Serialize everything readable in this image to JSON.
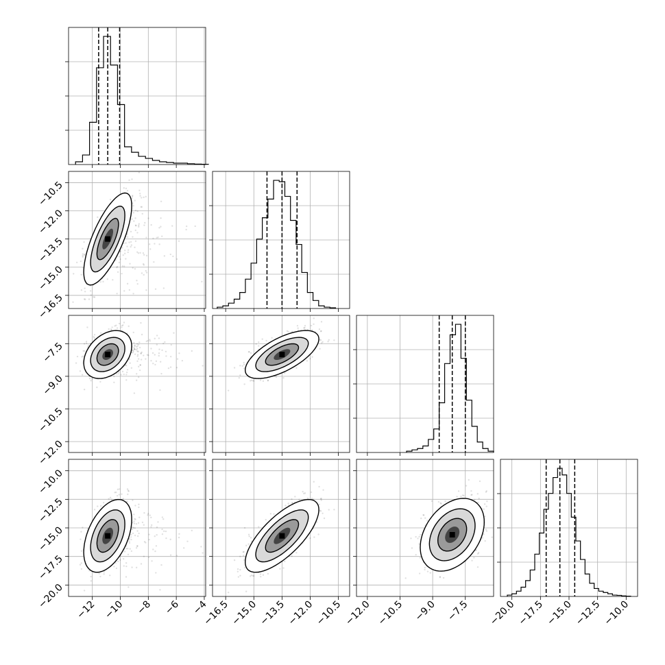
{
  "chart_data": {
    "type": "corner",
    "grid": true,
    "parameters": [
      {
        "id": "p0",
        "median": -10.9,
        "quantile_16": -11.55,
        "quantile_84": -10.05,
        "range": [
          -13.7,
          -3.9
        ],
        "ticks": [
          -12,
          -10,
          -8,
          -6,
          -4
        ],
        "tick_labels": [
          "−12",
          "−10",
          "−8",
          "−6",
          "−4"
        ],
        "hist_bins": [
          -13.2,
          -12.7,
          -12.2,
          -11.7,
          -11.2,
          -10.7,
          -10.2,
          -9.7,
          -9.2,
          -8.7,
          -8.2,
          -7.7,
          -7.2,
          -6.7,
          -6.2,
          -5.7,
          -5.2,
          -4.7,
          -4.2
        ],
        "hist_values": [
          0.02,
          0.07,
          0.31,
          0.71,
          0.94,
          0.73,
          0.44,
          0.13,
          0.09,
          0.06,
          0.045,
          0.03,
          0.02,
          0.015,
          0.01,
          0.01,
          0.006,
          0.003,
          0.002
        ]
      },
      {
        "id": "p1",
        "median": -13.5,
        "quantile_16": -14.3,
        "quantile_84": -12.7,
        "range": [
          -17.2,
          -9.9
        ],
        "ticks": [
          -16.5,
          -15.0,
          -13.5,
          -12.0,
          -10.5
        ],
        "tick_labels": [
          "−16.5",
          "−15.0",
          "−13.5",
          "−12.0",
          "−10.5"
        ],
        "hist_bins": [
          -16.95,
          -16.65,
          -16.35,
          -16.05,
          -15.75,
          -15.45,
          -15.15,
          -14.85,
          -14.55,
          -14.25,
          -13.95,
          -13.65,
          -13.35,
          -13.05,
          -12.75,
          -12.45,
          -12.15,
          -11.85,
          -11.55,
          -11.25,
          -10.95
        ],
        "hist_values": [
          0.01,
          0.02,
          0.04,
          0.07,
          0.12,
          0.22,
          0.34,
          0.52,
          0.68,
          0.82,
          0.96,
          0.95,
          0.84,
          0.66,
          0.48,
          0.27,
          0.12,
          0.06,
          0.02,
          0.01,
          0.005
        ]
      },
      {
        "id": "p2",
        "median": -8.1,
        "quantile_16": -8.7,
        "quantile_84": -7.5,
        "range": [
          -12.5,
          -6.2
        ],
        "ticks": [
          -12.0,
          -10.5,
          -9.0,
          -7.5
        ],
        "tick_labels": [
          "−12.0",
          "−10.5",
          "−9.0",
          "−7.5"
        ],
        "hist_bins": [
          -10.2,
          -9.95,
          -9.7,
          -9.45,
          -9.2,
          -8.95,
          -8.7,
          -8.45,
          -8.2,
          -7.95,
          -7.7,
          -7.45,
          -7.2,
          -6.95,
          -6.7,
          -6.45
        ],
        "hist_values": [
          0.01,
          0.02,
          0.03,
          0.05,
          0.1,
          0.18,
          0.38,
          0.68,
          0.9,
          0.98,
          0.72,
          0.4,
          0.2,
          0.08,
          0.03,
          0.01
        ]
      },
      {
        "id": "p3",
        "median": -15.8,
        "quantile_16": -17.0,
        "quantile_84": -14.5,
        "range": [
          -21.0,
          -9.0
        ],
        "ticks": [
          -20.0,
          -17.5,
          -15.0,
          -12.5,
          -10.0
        ],
        "tick_labels": [
          "−20.0",
          "−17.5",
          "−15.0",
          "−12.5",
          "−10.0"
        ],
        "y_tick_labels": [
          "−10.0",
          "−12.5",
          "−15.0",
          "−17.5",
          "−20.0"
        ],
        "hist_bins": [
          -20.4,
          -20.0,
          -19.6,
          -19.2,
          -18.8,
          -18.4,
          -18.0,
          -17.6,
          -17.2,
          -16.8,
          -16.4,
          -16.0,
          -15.6,
          -15.2,
          -14.8,
          -14.4,
          -14.0,
          -13.6,
          -13.2,
          -12.8,
          -12.4,
          -12.0,
          -11.6,
          -11.2,
          -10.8,
          -10.4,
          -10.0
        ],
        "hist_values": [
          0.01,
          0.02,
          0.04,
          0.07,
          0.12,
          0.2,
          0.32,
          0.48,
          0.66,
          0.78,
          0.9,
          0.97,
          0.92,
          0.78,
          0.6,
          0.42,
          0.28,
          0.17,
          0.1,
          0.06,
          0.04,
          0.03,
          0.02,
          0.01,
          0.008,
          0.004,
          0.002
        ]
      }
    ],
    "pairs": [
      {
        "x": "p0",
        "y": "p1",
        "center": [
          -10.9,
          -13.5
        ],
        "sigma": [
          0.7,
          1.0
        ],
        "rho": 0.72,
        "heavy_tail": true
      },
      {
        "x": "p0",
        "y": "p2",
        "center": [
          -10.9,
          -8.0
        ],
        "sigma": [
          0.7,
          0.45
        ],
        "rho": 0.35,
        "heavy_tail": true
      },
      {
        "x": "p1",
        "y": "p2",
        "center": [
          -13.5,
          -8.0
        ],
        "sigma": [
          0.8,
          0.45
        ],
        "rho": 0.65,
        "heavy_tail": false
      },
      {
        "x": "p0",
        "y": "p3",
        "center": [
          -10.9,
          -15.7
        ],
        "sigma": [
          0.7,
          1.3
        ],
        "rho": 0.45,
        "heavy_tail": true
      },
      {
        "x": "p1",
        "y": "p3",
        "center": [
          -13.5,
          -15.7
        ],
        "sigma": [
          0.8,
          1.3
        ],
        "rho": 0.72,
        "heavy_tail": false
      },
      {
        "x": "p2",
        "y": "p3",
        "center": [
          -8.1,
          -15.6
        ],
        "sigma": [
          0.6,
          1.3
        ],
        "rho": 0.35,
        "heavy_tail": false
      }
    ]
  }
}
